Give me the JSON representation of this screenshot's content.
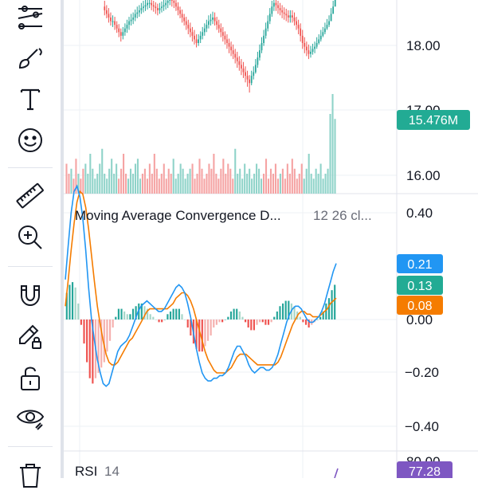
{
  "colors": {
    "up": "#26a69a",
    "down": "#ef5350",
    "up_vol": "#8fd3c9",
    "down_vol": "#f5a3a3",
    "macd_line": "#2196f3",
    "signal_line": "#f57c00",
    "badge_blue": "#2196f3",
    "badge_teal": "#22ab94",
    "badge_orange": "#f57c00",
    "badge_purple": "#7e57c2"
  },
  "toolbar": {
    "tools": [
      {
        "name": "trend-lines-icon"
      },
      {
        "name": "brush-icon"
      },
      {
        "name": "text-tool-icon"
      },
      {
        "name": "emoji-icon"
      },
      {
        "name": "ruler-icon"
      },
      {
        "name": "zoom-in-icon"
      },
      {
        "name": "magnet-icon"
      },
      {
        "name": "lock-drawing-icon"
      },
      {
        "name": "unlock-icon"
      },
      {
        "name": "eye-icon"
      },
      {
        "name": "trash-icon"
      }
    ]
  },
  "panes": {
    "price": {
      "axis_labels": [
        "18.00",
        "17.00",
        "16.00"
      ],
      "volume_badge": "15.476M"
    },
    "macd": {
      "title": "Moving Average Convergence D...",
      "params": "12 26 cl...",
      "axis_labels": [
        "0.40",
        "0.00",
        "−0.20",
        "−0.40"
      ],
      "badges": [
        "0.21",
        "0.13",
        "0.08"
      ]
    },
    "rsi": {
      "title": "RSI",
      "params": "14",
      "axis_label": "80.00",
      "badge": "77.28"
    }
  },
  "chart_data": [
    {
      "type": "candlestick",
      "pane": "price",
      "ylim": [
        15.8,
        18.6
      ],
      "x": [
        1,
        2,
        3,
        4,
        5,
        6,
        7,
        8,
        9,
        10,
        11,
        12,
        13,
        14,
        15,
        16,
        17,
        18,
        19,
        20,
        21,
        22,
        23,
        24,
        25,
        26,
        27,
        28,
        29,
        30,
        31,
        32,
        33,
        34,
        35,
        36,
        37,
        38,
        39,
        40,
        41,
        42,
        43,
        44,
        45,
        46,
        47,
        48,
        49,
        50,
        51,
        52,
        53,
        54,
        55,
        56,
        57,
        58,
        59,
        60,
        61,
        62,
        63,
        64,
        65,
        66,
        67,
        68,
        69,
        70,
        71,
        72,
        73,
        74,
        75,
        76,
        77,
        78,
        79,
        80,
        81,
        82,
        83,
        84,
        85,
        86,
        87,
        88,
        89,
        90,
        91,
        92,
        93,
        94,
        95,
        96,
        97,
        98,
        99,
        100,
        101,
        102,
        103,
        104,
        105,
        106,
        107,
        108,
        109,
        110,
        111,
        112,
        113,
        114
      ],
      "open": [
        18.5,
        18.45,
        18.4,
        18.35,
        18.3,
        18.3,
        18.25,
        18.2,
        18.15,
        18.1,
        18.15,
        18.2,
        18.25,
        18.3,
        18.32,
        18.35,
        18.4,
        18.42,
        18.45,
        18.48,
        18.5,
        18.52,
        18.55,
        18.55,
        18.52,
        18.5,
        18.48,
        18.45,
        18.48,
        18.5,
        18.52,
        18.55,
        18.58,
        18.6,
        18.58,
        18.55,
        18.5,
        18.45,
        18.4,
        18.35,
        18.3,
        18.25,
        18.2,
        18.15,
        18.1,
        18.05,
        18.0,
        18.05,
        18.1,
        18.15,
        18.2,
        18.25,
        18.3,
        18.32,
        18.35,
        18.3,
        18.25,
        18.2,
        18.15,
        18.1,
        18.05,
        18.0,
        17.95,
        17.9,
        17.85,
        17.8,
        17.75,
        17.7,
        17.65,
        17.6,
        17.55,
        17.5,
        17.45,
        17.55,
        17.6,
        17.7,
        17.8,
        17.9,
        18.0,
        18.1,
        18.2,
        18.3,
        18.4,
        18.5,
        18.55,
        18.52,
        18.48,
        18.45,
        18.42,
        18.4,
        18.38,
        18.35,
        18.38,
        18.35,
        18.3,
        18.25,
        18.2,
        18.1,
        18.0,
        17.95,
        17.9,
        17.85,
        17.88,
        17.92,
        17.95,
        18.0,
        18.05,
        18.1,
        18.15,
        18.2,
        18.25,
        18.3,
        18.4,
        18.5
      ],
      "close": [
        18.45,
        18.4,
        18.35,
        18.3,
        18.3,
        18.25,
        18.2,
        18.15,
        18.1,
        18.15,
        18.2,
        18.25,
        18.3,
        18.32,
        18.35,
        18.4,
        18.42,
        18.45,
        18.48,
        18.5,
        18.52,
        18.55,
        18.55,
        18.52,
        18.5,
        18.48,
        18.45,
        18.48,
        18.5,
        18.52,
        18.55,
        18.58,
        18.6,
        18.58,
        18.55,
        18.5,
        18.45,
        18.4,
        18.35,
        18.3,
        18.25,
        18.2,
        18.15,
        18.1,
        18.05,
        18.0,
        18.05,
        18.1,
        18.15,
        18.2,
        18.25,
        18.3,
        18.32,
        18.35,
        18.3,
        18.25,
        18.2,
        18.15,
        18.1,
        18.05,
        18.0,
        17.95,
        17.9,
        17.85,
        17.8,
        17.75,
        17.7,
        17.65,
        17.6,
        17.55,
        17.5,
        17.45,
        17.55,
        17.6,
        17.7,
        17.8,
        17.9,
        18.0,
        18.1,
        18.2,
        18.3,
        18.4,
        18.5,
        18.55,
        18.52,
        18.48,
        18.45,
        18.42,
        18.4,
        18.38,
        18.35,
        18.38,
        18.35,
        18.3,
        18.25,
        18.2,
        18.1,
        18.0,
        17.95,
        17.9,
        17.85,
        17.88,
        17.92,
        17.95,
        18.0,
        18.05,
        18.1,
        18.15,
        18.2,
        18.25,
        18.3,
        18.4,
        18.5,
        18.6
      ],
      "high": [
        18.58,
        18.52,
        18.48,
        18.42,
        18.38,
        18.36,
        18.3,
        18.26,
        18.2,
        18.22,
        18.27,
        18.32,
        18.36,
        18.4,
        18.42,
        18.46,
        18.5,
        18.52,
        18.55,
        18.58,
        18.6,
        18.62,
        18.63,
        18.62,
        18.58,
        18.56,
        18.54,
        18.55,
        18.57,
        18.6,
        18.62,
        18.65,
        18.68,
        18.66,
        18.64,
        18.6,
        18.56,
        18.5,
        18.46,
        18.4,
        18.36,
        18.32,
        18.28,
        18.22,
        18.18,
        18.12,
        18.12,
        18.16,
        18.22,
        18.27,
        18.32,
        18.38,
        18.4,
        18.43,
        18.42,
        18.36,
        18.32,
        18.27,
        18.22,
        18.16,
        18.12,
        18.06,
        18.02,
        17.98,
        17.92,
        17.88,
        17.82,
        17.78,
        17.74,
        17.68,
        17.62,
        17.56,
        17.62,
        17.68,
        17.78,
        17.88,
        17.98,
        18.08,
        18.18,
        18.28,
        18.38,
        18.48,
        18.58,
        18.62,
        18.62,
        18.58,
        18.55,
        18.52,
        18.49,
        18.47,
        18.45,
        18.45,
        18.45,
        18.42,
        18.36,
        18.32,
        18.27,
        18.18,
        18.08,
        18.02,
        17.98,
        17.96,
        17.99,
        18.02,
        18.08,
        18.12,
        18.18,
        18.22,
        18.28,
        18.33,
        18.38,
        18.48,
        18.58,
        18.66
      ],
      "low": [
        18.38,
        18.34,
        18.28,
        18.24,
        18.22,
        18.18,
        18.14,
        18.08,
        18.02,
        18.05,
        18.1,
        18.14,
        18.18,
        18.24,
        18.26,
        18.3,
        18.34,
        18.36,
        18.4,
        18.42,
        18.44,
        18.46,
        18.48,
        18.45,
        18.43,
        18.4,
        18.38,
        18.4,
        18.42,
        18.44,
        18.46,
        18.48,
        18.52,
        18.5,
        18.48,
        18.44,
        18.38,
        18.34,
        18.28,
        18.24,
        18.18,
        18.12,
        18.08,
        18.02,
        17.98,
        17.94,
        17.96,
        18.0,
        18.05,
        18.1,
        18.15,
        18.2,
        18.24,
        18.26,
        18.24,
        18.18,
        18.14,
        18.08,
        18.02,
        17.98,
        17.92,
        17.86,
        17.82,
        17.78,
        17.72,
        17.66,
        17.62,
        17.56,
        17.52,
        17.46,
        17.4,
        17.32,
        17.42,
        17.5,
        17.58,
        17.66,
        17.76,
        17.86,
        17.96,
        18.06,
        18.16,
        18.26,
        18.36,
        18.44,
        18.44,
        18.4,
        18.38,
        18.34,
        18.32,
        18.3,
        18.28,
        18.28,
        18.28,
        18.24,
        18.18,
        18.12,
        18.02,
        17.92,
        17.86,
        17.82,
        17.78,
        17.8,
        17.84,
        17.86,
        17.92,
        17.98,
        18.02,
        18.08,
        18.12,
        18.18,
        18.22,
        18.32,
        18.42,
        18.52
      ]
    },
    {
      "type": "bar",
      "pane": "volume",
      "ylim": [
        0,
        20
      ],
      "values": [
        6,
        4,
        5,
        3,
        7,
        4,
        3,
        5,
        6,
        4,
        8,
        5,
        3,
        4,
        6,
        9,
        4,
        3,
        5,
        7,
        4,
        6,
        3,
        5,
        8,
        4,
        3,
        5,
        4,
        6,
        7,
        3,
        4,
        5,
        3,
        6,
        4,
        8,
        5,
        3,
        4,
        6,
        3,
        5,
        4,
        7,
        3,
        4,
        6,
        5,
        3,
        4,
        5,
        6,
        3,
        4,
        7,
        5,
        3,
        4,
        6,
        5,
        8,
        4,
        3,
        5,
        7,
        4,
        6,
        5,
        3,
        9,
        4,
        5,
        3,
        6,
        4,
        5,
        3,
        4,
        6,
        5,
        3,
        4,
        7,
        3,
        5,
        4,
        6,
        3,
        4,
        5,
        3,
        6,
        4,
        7,
        5,
        3,
        4,
        6,
        3,
        5,
        8,
        4,
        3,
        5,
        4,
        6,
        3,
        4,
        5,
        16,
        20,
        15
      ],
      "up": [
        0,
        0,
        1,
        0,
        0,
        1,
        0,
        0,
        1,
        1,
        1,
        1,
        1,
        1,
        1,
        1,
        1,
        1,
        1,
        1,
        1,
        1,
        0,
        0,
        0,
        0,
        1,
        1,
        1,
        1,
        1,
        1,
        0,
        0,
        0,
        0,
        0,
        0,
        0,
        0,
        0,
        0,
        0,
        0,
        0,
        1,
        1,
        1,
        1,
        1,
        1,
        1,
        1,
        0,
        0,
        0,
        0,
        0,
        0,
        0,
        0,
        0,
        0,
        0,
        0,
        0,
        0,
        0,
        0,
        0,
        0,
        1,
        1,
        1,
        1,
        1,
        1,
        1,
        1,
        1,
        1,
        1,
        1,
        0,
        0,
        0,
        0,
        0,
        0,
        0,
        1,
        0,
        0,
        0,
        0,
        0,
        0,
        0,
        0,
        0,
        1,
        1,
        1,
        1,
        1,
        1,
        1,
        1,
        1,
        1,
        1,
        1,
        1,
        1
      ]
    },
    {
      "type": "line",
      "pane": "macd",
      "ylim": [
        -0.47,
        0.47
      ],
      "series": [
        {
          "values": [
            0.15,
            0.28,
            0.4,
            0.48,
            0.5,
            0.46,
            0.38,
            0.26,
            0.12,
            0.0,
            -0.08,
            -0.15,
            -0.2,
            -0.24,
            -0.25,
            -0.24,
            -0.2,
            -0.16,
            -0.12,
            -0.1,
            -0.09,
            -0.08,
            -0.06,
            -0.03,
            0.0,
            0.03,
            0.05,
            0.06,
            0.07,
            0.06,
            0.05,
            0.04,
            0.03,
            0.03,
            0.04,
            0.06,
            0.08,
            0.1,
            0.12,
            0.13,
            0.12,
            0.1,
            0.06,
            0.01,
            -0.05,
            -0.11,
            -0.16,
            -0.2,
            -0.22,
            -0.23,
            -0.23,
            -0.22,
            -0.22,
            -0.21,
            -0.21,
            -0.2,
            -0.18,
            -0.15,
            -0.12,
            -0.1,
            -0.1,
            -0.12,
            -0.14,
            -0.17,
            -0.19,
            -0.2,
            -0.19,
            -0.18,
            -0.18,
            -0.19,
            -0.19,
            -0.18,
            -0.16,
            -0.13,
            -0.09,
            -0.05,
            -0.01,
            0.02,
            0.04,
            0.05,
            0.05,
            0.04,
            0.02,
            0.0,
            -0.01,
            -0.01,
            0.0,
            0.01,
            0.03,
            0.06,
            0.1,
            0.14,
            0.18,
            0.21
          ]
        },
        {
          "values": [
            0.05,
            0.15,
            0.26,
            0.36,
            0.44,
            0.48,
            0.47,
            0.42,
            0.34,
            0.24,
            0.14,
            0.05,
            -0.02,
            -0.08,
            -0.13,
            -0.16,
            -0.17,
            -0.17,
            -0.16,
            -0.14,
            -0.12,
            -0.1,
            -0.08,
            -0.07,
            -0.05,
            -0.03,
            -0.01,
            0.01,
            0.03,
            0.04,
            0.04,
            0.04,
            0.04,
            0.04,
            0.04,
            0.04,
            0.05,
            0.06,
            0.08,
            0.09,
            0.1,
            0.1,
            0.09,
            0.07,
            0.04,
            0.0,
            -0.04,
            -0.08,
            -0.12,
            -0.15,
            -0.17,
            -0.19,
            -0.2,
            -0.2,
            -0.2,
            -0.2,
            -0.19,
            -0.18,
            -0.16,
            -0.14,
            -0.13,
            -0.13,
            -0.13,
            -0.14,
            -0.15,
            -0.16,
            -0.17,
            -0.17,
            -0.17,
            -0.17,
            -0.17,
            -0.17,
            -0.17,
            -0.16,
            -0.14,
            -0.11,
            -0.08,
            -0.05,
            -0.02,
            0.0,
            0.02,
            0.03,
            0.03,
            0.02,
            0.02,
            0.01,
            0.01,
            0.01,
            0.02,
            0.03,
            0.04,
            0.06,
            0.07,
            0.08
          ]
        }
      ]
    },
    {
      "type": "bar",
      "pane": "macd-histogram",
      "ylim": [
        -0.47,
        0.47
      ],
      "values": [
        0.1,
        0.13,
        0.14,
        0.12,
        0.06,
        -0.02,
        -0.09,
        -0.16,
        -0.22,
        -0.24,
        -0.22,
        -0.2,
        -0.18,
        -0.16,
        -0.12,
        -0.08,
        -0.03,
        0.01,
        0.04,
        0.04,
        0.03,
        0.02,
        0.02,
        0.04,
        0.05,
        0.06,
        0.06,
        0.05,
        0.04,
        0.02,
        0.01,
        0.0,
        -0.01,
        -0.01,
        0.0,
        0.02,
        0.03,
        0.04,
        0.04,
        0.04,
        0.02,
        0.0,
        -0.03,
        -0.06,
        -0.09,
        -0.11,
        -0.12,
        -0.12,
        -0.1,
        -0.08,
        -0.06,
        -0.03,
        -0.02,
        -0.01,
        -0.01,
        0.0,
        0.01,
        0.03,
        0.04,
        0.04,
        0.03,
        0.01,
        -0.01,
        -0.03,
        -0.04,
        -0.04,
        -0.02,
        -0.01,
        -0.01,
        -0.02,
        -0.02,
        -0.01,
        0.01,
        0.03,
        0.05,
        0.06,
        0.07,
        0.07,
        0.06,
        0.05,
        0.03,
        0.01,
        -0.01,
        -0.02,
        -0.03,
        -0.02,
        -0.01,
        0.0,
        0.01,
        0.03,
        0.06,
        0.08,
        0.11,
        0.13
      ]
    }
  ]
}
